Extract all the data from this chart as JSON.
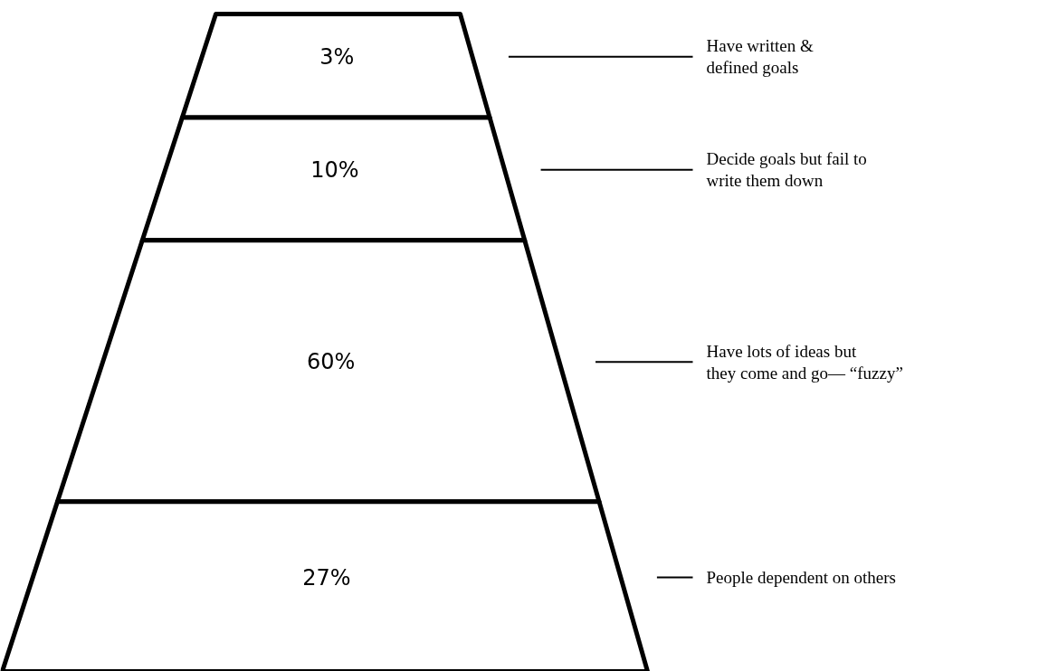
{
  "chart_data": {
    "type": "other",
    "categories": [
      "Have written &\ndefined goals",
      "Decide goals but fail to\nwrite them down",
      "Have lots of ideas but\nthey come and go— “fuzzy”",
      "People dependent on others"
    ],
    "values": [
      3,
      10,
      60,
      27
    ],
    "value_labels": [
      "3%",
      "10%",
      "60%",
      "27%"
    ]
  }
}
